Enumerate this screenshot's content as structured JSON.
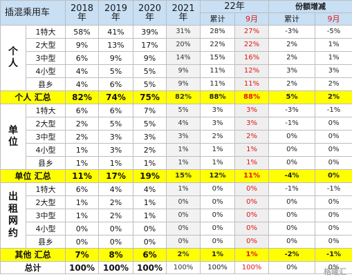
{
  "header": {
    "title": "插混乘用车",
    "y2018": "2018",
    "y2019": "2019",
    "y2020": "2020",
    "y2021": "2021",
    "y2022": "22年",
    "share_change": "份额增减",
    "year_unit": "年",
    "cum": "累计",
    "sep": "9月"
  },
  "sections": [
    {
      "label": "个\n人",
      "rows": [
        {
          "name": "1特大",
          "y2018": "58%",
          "y2019": "41%",
          "y2020": "39%",
          "y2021": "31%",
          "cum22": "28%",
          "sep22": "27%",
          "dcum": "-3%",
          "dsep": "-5%"
        },
        {
          "name": "2大型",
          "y2018": "9%",
          "y2019": "13%",
          "y2020": "17%",
          "y2021": "20%",
          "cum22": "22%",
          "sep22": "22%",
          "dcum": "2%",
          "dsep": "1%"
        },
        {
          "name": "3中型",
          "y2018": "6%",
          "y2019": "9%",
          "y2020": "9%",
          "y2021": "14%",
          "cum22": "15%",
          "sep22": "16%",
          "dcum": "2%",
          "dsep": "1%"
        },
        {
          "name": "4小型",
          "y2018": "4%",
          "y2019": "5%",
          "y2020": "5%",
          "y2021": "9%",
          "cum22": "11%",
          "sep22": "12%",
          "dcum": "3%",
          "dsep": "3%"
        },
        {
          "name": "县乡",
          "y2018": "4%",
          "y2019": "6%",
          "y2020": "5%",
          "y2021": "9%",
          "cum22": "11%",
          "sep22": "11%",
          "dcum": "2%",
          "dsep": "2%"
        }
      ],
      "total": {
        "name": "个人 汇总",
        "y2018": "82%",
        "y2019": "74%",
        "y2020": "75%",
        "y2021": "82%",
        "cum22": "88%",
        "sep22": "88%",
        "dcum": "5%",
        "dsep": "2%"
      }
    },
    {
      "label": "单\n位",
      "rows": [
        {
          "name": "1特大",
          "y2018": "6%",
          "y2019": "6%",
          "y2020": "7%",
          "y2021": "5%",
          "cum22": "3%",
          "sep22": "3%",
          "dcum": "-3%",
          "dsep": "-1%"
        },
        {
          "name": "2大型",
          "y2018": "2%",
          "y2019": "5%",
          "y2020": "5%",
          "y2021": "4%",
          "cum22": "3%",
          "sep22": "3%",
          "dcum": "-1%",
          "dsep": "0%"
        },
        {
          "name": "3中型",
          "y2018": "2%",
          "y2019": "3%",
          "y2020": "3%",
          "y2021": "3%",
          "cum22": "2%",
          "sep22": "2%",
          "dcum": "0%",
          "dsep": "0%"
        },
        {
          "name": "4小型",
          "y2018": "1%",
          "y2019": "3%",
          "y2020": "2%",
          "y2021": "1%",
          "cum22": "1%",
          "sep22": "1%",
          "dcum": "0%",
          "dsep": "0%"
        },
        {
          "name": "县乡",
          "y2018": "1%",
          "y2019": "1%",
          "y2020": "1%",
          "y2021": "1%",
          "cum22": "1%",
          "sep22": "1%",
          "dcum": "0%",
          "dsep": "0%"
        }
      ],
      "total": {
        "name": "单位 汇总",
        "y2018": "11%",
        "y2019": "17%",
        "y2020": "19%",
        "y2021": "15%",
        "cum22": "12%",
        "sep22": "11%",
        "dcum": "-4%",
        "dsep": "0%"
      }
    },
    {
      "label": "出\n租\n网\n约",
      "rows": [
        {
          "name": "1特大",
          "y2018": "6%",
          "y2019": "4%",
          "y2020": "4%",
          "y2021": "1%",
          "cum22": "0%",
          "sep22": "0%",
          "dcum": "-1%",
          "dsep": "-1%"
        },
        {
          "name": "2大型",
          "y2018": "1%",
          "y2019": "2%",
          "y2020": "1%",
          "y2021": "0%",
          "cum22": "0%",
          "sep22": "0%",
          "dcum": "0%",
          "dsep": "0%"
        },
        {
          "name": "3中型",
          "y2018": "1%",
          "y2019": "2%",
          "y2020": "1%",
          "y2021": "0%",
          "cum22": "0%",
          "sep22": "0%",
          "dcum": "0%",
          "dsep": "0%"
        },
        {
          "name": "4小型",
          "y2018": "0%",
          "y2019": "0%",
          "y2020": "0%",
          "y2021": "0%",
          "cum22": "0%",
          "sep22": "0%",
          "dcum": "0%",
          "dsep": "0%"
        },
        {
          "name": "县乡",
          "y2018": "0%",
          "y2019": "0%",
          "y2020": "0%",
          "y2021": "0%",
          "cum22": "0%",
          "sep22": "0%",
          "dcum": "0%",
          "dsep": "0%"
        }
      ],
      "total": {
        "name": "其他 汇总",
        "y2018": "7%",
        "y2019": "8%",
        "y2020": "6%",
        "y2021": "2%",
        "cum22": "1%",
        "sep22": "1%",
        "dcum": "-2%",
        "dsep": "-1%"
      }
    }
  ],
  "grand_total": {
    "name": "总计",
    "y2018": "100%",
    "y2019": "100%",
    "y2020": "100%",
    "y2021": "100%",
    "cum22": "100%",
    "sep22": "100%",
    "dcum": "0%",
    "dsep": "0%"
  },
  "watermark": "格隆汇"
}
